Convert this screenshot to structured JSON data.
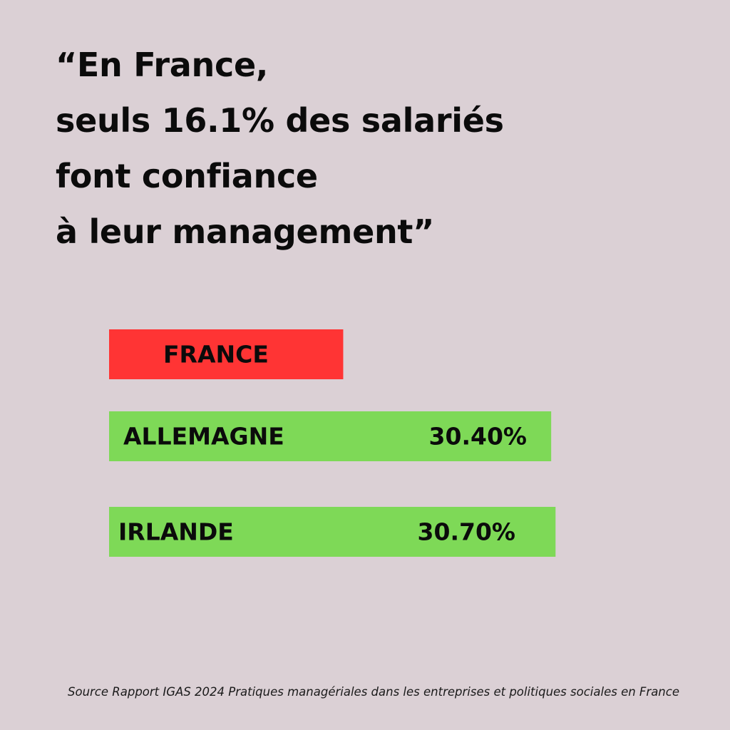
{
  "headline": {
    "lines": [
      "“En France,",
      "seuls 16.1% des salariés",
      "font confiance",
      "à leur management”"
    ]
  },
  "colors": {
    "background": "#dbd0d5",
    "france_bar": "#ff3434",
    "comparison_bar": "#7ed957",
    "text": "#0b0b0b"
  },
  "chart_data": {
    "type": "bar",
    "orientation": "horizontal",
    "categories": [
      "FRANCE",
      "ALLEMAGNE",
      "IRLANDE"
    ],
    "values": [
      16.1,
      30.4,
      30.7
    ],
    "value_labels": [
      "",
      "30.40%",
      "30.70%"
    ],
    "bar_colors": [
      "#ff3434",
      "#7ed957",
      "#7ed957"
    ],
    "title": "",
    "xlabel": "",
    "ylabel": "",
    "grid": false,
    "legend": "none"
  },
  "source": {
    "text": "Source Rapport IGAS 2024 Pratiques managériales dans les entreprises et politiques sociales en France"
  }
}
